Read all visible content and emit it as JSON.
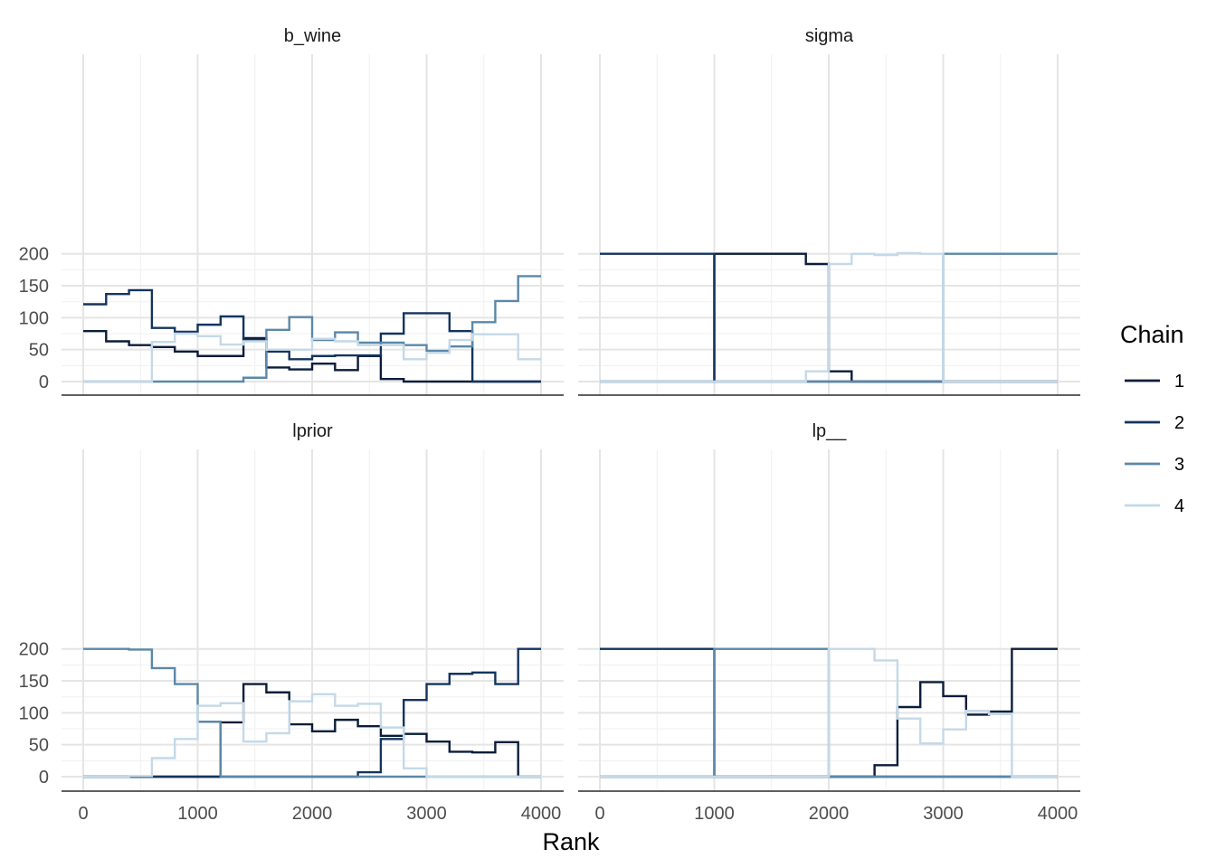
{
  "chart_data": {
    "type": "line",
    "step": true,
    "xlabel": "Rank",
    "ylabel": "",
    "grid": true,
    "legend": {
      "title": "Chain",
      "position": "right",
      "entries": [
        "1",
        "2",
        "3",
        "4"
      ]
    },
    "colors": {
      "1": "#0b1d3a",
      "2": "#14345e",
      "3": "#5b88a8",
      "4": "#c4d9e8"
    },
    "x_ticks": [
      "0",
      "1000",
      "2000",
      "3000",
      "4000"
    ],
    "y_ticks": [
      "0",
      "50",
      "100",
      "150",
      "200"
    ],
    "xlim": [
      0,
      4000
    ],
    "ylim": [
      0,
      200
    ],
    "bin_width": 200,
    "panels": [
      {
        "title": "b_wine",
        "series": [
          {
            "name": "1",
            "values": [
              79,
              63,
              57,
              54,
              47,
              40,
              40,
              68,
              22,
              19,
              28,
              18,
              40,
              4,
              0,
              0,
              0,
              0,
              0,
              0
            ]
          },
          {
            "name": "2",
            "values": [
              121,
              137,
              143,
              84,
              78,
              89,
              102,
              65,
              47,
              35,
              40,
              41,
              41,
              75,
              107,
              107,
              79,
              0,
              0,
              0
            ]
          },
          {
            "name": "3",
            "values": [
              0,
              0,
              0,
              0,
              0,
              0,
              0,
              6,
              81,
              101,
              65,
              77,
              61,
              61,
              57,
              48,
              55,
              93,
              126,
              165
            ]
          },
          {
            "name": "4",
            "values": [
              0,
              0,
              0,
              62,
              75,
              71,
              58,
              63,
              50,
              50,
              67,
              63,
              57,
              57,
              35,
              45,
              65,
              74,
              74,
              35
            ]
          }
        ]
      },
      {
        "title": "sigma",
        "series": [
          {
            "name": "1",
            "values": [
              0,
              0,
              0,
              0,
              0,
              200,
              200,
              200,
              200,
              184,
              16,
              0,
              0,
              0,
              0,
              0,
              0,
              0,
              0,
              0
            ]
          },
          {
            "name": "2",
            "values": [
              200,
              200,
              200,
              200,
              200,
              0,
              0,
              0,
              0,
              0,
              0,
              0,
              0,
              0,
              0,
              0,
              0,
              0,
              0,
              0
            ]
          },
          {
            "name": "3",
            "values": [
              0,
              0,
              0,
              0,
              0,
              0,
              0,
              0,
              0,
              0,
              0,
              0,
              0,
              0,
              0,
              200,
              200,
              200,
              200,
              200
            ]
          },
          {
            "name": "4",
            "values": [
              0,
              0,
              0,
              0,
              0,
              0,
              0,
              0,
              0,
              16,
              184,
              200,
              198,
              201,
              200,
              0,
              0,
              0,
              0,
              0
            ]
          }
        ]
      },
      {
        "title": "lprior",
        "series": [
          {
            "name": "1",
            "values": [
              0,
              0,
              0,
              0,
              0,
              0,
              85,
              145,
              132,
              82,
              71,
              89,
              79,
              64,
              67,
              55,
              39,
              38,
              54,
              0
            ]
          },
          {
            "name": "2",
            "values": [
              0,
              0,
              0,
              0,
              0,
              0,
              0,
              0,
              0,
              0,
              0,
              0,
              7,
              59,
              120,
              145,
              161,
              163,
              145,
              200
            ]
          },
          {
            "name": "3",
            "values": [
              200,
              200,
              199,
              170,
              145,
              86,
              0,
              0,
              0,
              0,
              0,
              0,
              0,
              0,
              0,
              0,
              0,
              0,
              0,
              0
            ]
          },
          {
            "name": "4",
            "values": [
              0,
              0,
              1,
              29,
              59,
              111,
              115,
              55,
              68,
              118,
              129,
              111,
              114,
              77,
              13,
              0,
              0,
              0,
              0,
              0
            ]
          }
        ]
      },
      {
        "title": "lp__",
        "series": [
          {
            "name": "1",
            "values": [
              0,
              0,
              0,
              0,
              0,
              0,
              0,
              0,
              0,
              0,
              0,
              0,
              18,
              109,
              148,
              126,
              97,
              102,
              200,
              200
            ]
          },
          {
            "name": "2",
            "values": [
              200,
              200,
              200,
              200,
              200,
              0,
              0,
              0,
              0,
              0,
              0,
              0,
              0,
              0,
              0,
              0,
              0,
              0,
              0,
              0
            ]
          },
          {
            "name": "3",
            "values": [
              0,
              0,
              0,
              0,
              0,
              200,
              200,
              200,
              200,
              200,
              0,
              0,
              0,
              0,
              0,
              0,
              0,
              0,
              0,
              0
            ]
          },
          {
            "name": "4",
            "values": [
              0,
              0,
              0,
              0,
              0,
              0,
              0,
              0,
              0,
              0,
              200,
              200,
              182,
              91,
              52,
              74,
              103,
              98,
              0,
              0
            ]
          }
        ]
      }
    ]
  }
}
